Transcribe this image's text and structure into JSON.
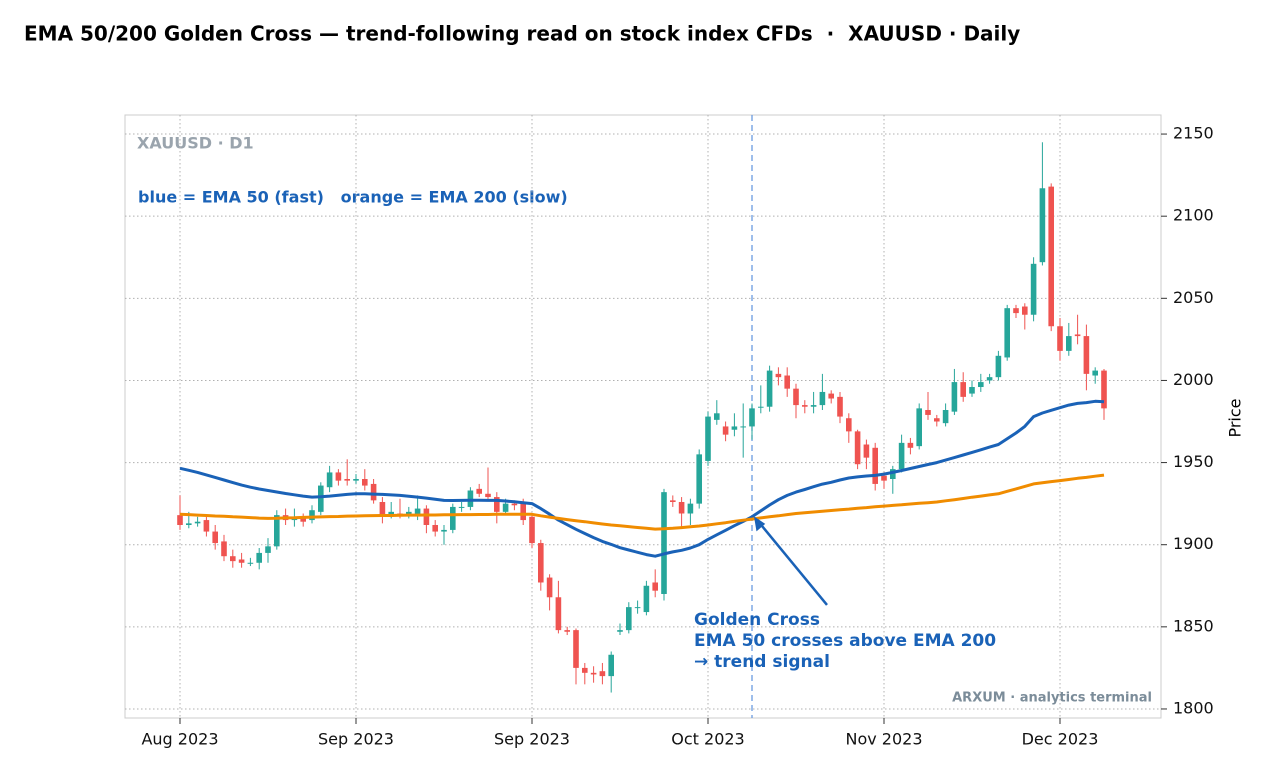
{
  "chart_data": {
    "type": "candlestick",
    "title": "EMA 50/200 Golden Cross — trend-following read on stock index CFDs  ·  XAUUSD · Daily",
    "panel_label": "XAUUSD · D1",
    "note": "blue = EMA 50 (fast)   orange = EMA 200 (slow)",
    "annotation": [
      "Golden Cross",
      "EMA 50 crosses above EMA 200",
      "→ trend signal"
    ],
    "watermark": "ARXUM · analytics terminal",
    "ylabel": "Price",
    "categories": [
      "Aug 2023",
      null,
      null,
      null,
      null,
      null,
      null,
      null,
      null,
      null,
      null,
      null,
      null,
      null,
      null,
      null,
      null,
      null,
      null,
      null,
      "Sep 2023",
      null,
      null,
      null,
      null,
      null,
      null,
      null,
      null,
      null,
      null,
      null,
      null,
      null,
      null,
      null,
      null,
      null,
      null,
      null,
      "Sep 2023",
      null,
      null,
      null,
      null,
      null,
      null,
      null,
      null,
      null,
      null,
      null,
      null,
      null,
      null,
      null,
      null,
      null,
      null,
      null,
      "Oct 2023",
      null,
      null,
      null,
      null,
      null,
      null,
      null,
      null,
      null,
      null,
      null,
      null,
      null,
      null,
      null,
      null,
      null,
      null,
      null,
      "Nov 2023",
      null,
      null,
      null,
      null,
      null,
      null,
      null,
      null,
      null,
      null,
      null,
      null,
      null,
      null,
      null,
      null,
      null,
      null,
      null,
      "Dec 2023",
      null,
      null,
      null,
      null,
      null
    ],
    "open": [
      1918,
      1912,
      1913,
      1915,
      1908,
      1902,
      1893,
      1891,
      1889,
      1889,
      1895,
      1899,
      1918,
      1915,
      1916,
      1915,
      1920,
      1935,
      1944,
      1940,
      1939,
      1940,
      1937,
      1926,
      1918,
      1919,
      1918,
      1918,
      1922,
      1912,
      1908,
      1909,
      1923,
      1923,
      1934,
      1931,
      1929,
      1920,
      1925,
      1925,
      1917,
      1901,
      1880,
      1868,
      1848,
      1848,
      1825,
      1822,
      1823,
      1820,
      1847,
      1848,
      1862,
      1859,
      1877,
      1870,
      1927,
      1926,
      1919,
      1925,
      1951,
      1976,
      1972,
      1970,
      1972,
      1972,
      1984,
      1984,
      2004,
      2003,
      1995,
      1985,
      1984,
      1985,
      1992,
      1990,
      1977,
      1969,
      1961,
      1959,
      1942,
      1940,
      1946,
      1962,
      1960,
      1982,
      1977,
      1974,
      1981,
      1999,
      1992,
      1996,
      2000,
      2002,
      2014,
      2044,
      2045,
      2040,
      2072,
      2118,
      2033,
      2018,
      2028,
      2027,
      2003,
      2006
    ],
    "high": [
      1930,
      1920,
      1917,
      1918,
      1912,
      1906,
      1897,
      1895,
      1892,
      1898,
      1904,
      1921,
      1922,
      1922,
      1919,
      1924,
      1938,
      1948,
      1946,
      1952,
      1943,
      1946,
      1940,
      1929,
      1926,
      1928,
      1923,
      1930,
      1924,
      1915,
      1912,
      1925,
      1926,
      1935,
      1937,
      1947,
      1932,
      1928,
      1927,
      1928,
      1919,
      1903,
      1882,
      1878,
      1850,
      1849,
      1828,
      1826,
      1828,
      1835,
      1852,
      1865,
      1866,
      1878,
      1885,
      1934,
      1930,
      1929,
      1928,
      1958,
      1981,
      1988,
      1975,
      1980,
      1986,
      1986,
      1997,
      2009,
      2008,
      2008,
      1998,
      1988,
      1993,
      2004,
      1994,
      1993,
      1980,
      1970,
      1964,
      1962,
      1944,
      1948,
      1967,
      1965,
      1986,
      1993,
      1979,
      1986,
      2007,
      2005,
      2000,
      2004,
      2004,
      2018,
      2046,
      2046,
      2047,
      2075,
      2145,
      2120,
      2038,
      2035,
      2040,
      2034,
      2008,
      2007
    ],
    "low": [
      1909,
      1910,
      1911,
      1905,
      1897,
      1890,
      1886,
      1886,
      1887,
      1885,
      1889,
      1897,
      1912,
      1911,
      1911,
      1913,
      1918,
      1932,
      1936,
      1936,
      1937,
      1933,
      1925,
      1913,
      1916,
      1916,
      1916,
      1915,
      1907,
      1905,
      1900,
      1907,
      1920,
      1921,
      1929,
      1927,
      1913,
      1918,
      1921,
      1912,
      1898,
      1872,
      1860,
      1846,
      1845,
      1815,
      1815,
      1816,
      1815,
      1810,
      1845,
      1846,
      1858,
      1857,
      1868,
      1866,
      1923,
      1910,
      1912,
      1922,
      1948,
      1973,
      1963,
      1966,
      1953,
      1964,
      1980,
      1981,
      1997,
      1990,
      1977,
      1980,
      1980,
      1982,
      1986,
      1974,
      1962,
      1946,
      1946,
      1933,
      1934,
      1931,
      1944,
      1955,
      1958,
      1976,
      1972,
      1972,
      1979,
      1987,
      1990,
      1993,
      1998,
      2000,
      2012,
      2038,
      2031,
      2036,
      2070,
      2030,
      2012,
      2015,
      2022,
      1994,
      1998,
      1976
    ],
    "close": [
      1912,
      1913,
      1914,
      1908,
      1901,
      1893,
      1890,
      1889,
      1889,
      1895,
      1899,
      1918,
      1915,
      1916,
      1914,
      1921,
      1936,
      1944,
      1939,
      1939,
      1940,
      1936,
      1927,
      1917,
      1920,
      1918,
      1920,
      1922,
      1912,
      1908,
      1909,
      1923,
      1923,
      1933,
      1931,
      1929,
      1920,
      1925,
      1924,
      1915,
      1901,
      1877,
      1868,
      1848,
      1847,
      1825,
      1822,
      1821,
      1820,
      1833,
      1848,
      1862,
      1862,
      1875,
      1872,
      1932,
      1926,
      1919,
      1925,
      1955,
      1978,
      1980,
      1967,
      1972,
      1972,
      1983,
      1984,
      2006,
      2002,
      1995,
      1985,
      1984,
      1985,
      1993,
      1989,
      1978,
      1969,
      1949,
      1953,
      1937,
      1939,
      1946,
      1962,
      1959,
      1983,
      1979,
      1975,
      1982,
      1999,
      1990,
      1996,
      1999,
      2002,
      2015,
      2044,
      2041,
      2040,
      2071,
      2117,
      2033,
      2018,
      2027,
      2027,
      2004,
      2006,
      1983
    ],
    "up_color": "#26a69a",
    "down_color": "#ef5350",
    "series": [
      {
        "color": "#1a62b7",
        "values": [
          1946.5,
          1945.3,
          1944.0,
          1942.5,
          1941.0,
          1939.4,
          1937.8,
          1936.3,
          1935.0,
          1933.9,
          1933.0,
          1932.1,
          1931.2,
          1930.4,
          1929.6,
          1929.0,
          1929.2,
          1929.6,
          1930.1,
          1930.6,
          1931.0,
          1931.0,
          1930.8,
          1930.6,
          1930.3,
          1930.0,
          1929.5,
          1929.0,
          1928.4,
          1927.7,
          1927.0,
          1926.9,
          1927.0,
          1927.1,
          1927.1,
          1927.0,
          1927.0,
          1926.6,
          1926.1,
          1925.6,
          1925.0,
          1922.0,
          1918.6,
          1915.0,
          1912.2,
          1909.4,
          1906.8,
          1904.3,
          1902.0,
          1900.2,
          1898.2,
          1896.8,
          1895.4,
          1894.0,
          1893.0,
          1894.4,
          1895.6,
          1896.6,
          1898.0,
          1900.0,
          1903.2,
          1906.0,
          1908.8,
          1911.6,
          1914.2,
          1917.0,
          1920.6,
          1924.2,
          1927.4,
          1930.0,
          1932.0,
          1933.6,
          1935.3,
          1936.9,
          1938.0,
          1939.4,
          1940.6,
          1941.3,
          1941.8,
          1942.2,
          1943.0,
          1944.0,
          1945.2,
          1946.4,
          1947.6,
          1948.8,
          1950.0,
          1951.5,
          1953.0,
          1954.6,
          1956.2,
          1957.8,
          1959.4,
          1961.0,
          1964.5,
          1968.0,
          1972.0,
          1978.0,
          1980.2,
          1981.8,
          1983.4,
          1985.0,
          1986.0,
          1986.5,
          1987.3,
          1987.0
        ]
      },
      {
        "color": "#f08c00",
        "values": [
          1918.5,
          1918.3,
          1918.0,
          1917.8,
          1917.5,
          1917.3,
          1917.0,
          1916.8,
          1916.5,
          1916.2,
          1916.0,
          1916.1,
          1916.3,
          1916.4,
          1916.6,
          1916.8,
          1916.9,
          1917.1,
          1917.2,
          1917.4,
          1917.5,
          1917.6,
          1917.7,
          1917.8,
          1917.8,
          1917.9,
          1918.0,
          1918.0,
          1918.1,
          1918.1,
          1918.2,
          1918.2,
          1918.3,
          1918.3,
          1918.4,
          1918.4,
          1918.5,
          1918.5,
          1918.5,
          1918.5,
          1918.5,
          1917.6,
          1916.8,
          1916.0,
          1915.3,
          1914.6,
          1914.0,
          1913.3,
          1912.6,
          1912.0,
          1911.5,
          1911.0,
          1910.5,
          1910.0,
          1909.5,
          1909.7,
          1910.0,
          1910.4,
          1910.9,
          1911.4,
          1912.0,
          1912.7,
          1913.4,
          1914.2,
          1914.9,
          1915.6,
          1916.3,
          1917.0,
          1917.6,
          1918.3,
          1919.0,
          1919.5,
          1919.9,
          1920.4,
          1920.8,
          1921.3,
          1921.7,
          1922.2,
          1922.6,
          1923.1,
          1923.5,
          1923.9,
          1924.3,
          1924.8,
          1925.2,
          1925.6,
          1926.0,
          1926.7,
          1927.4,
          1928.1,
          1928.9,
          1929.6,
          1930.3,
          1931.0,
          1932.5,
          1934.0,
          1935.5,
          1937.0,
          1937.7,
          1938.4,
          1939.0,
          1939.7,
          1940.4,
          1941.0,
          1941.7,
          1942.4
        ]
      }
    ],
    "ylim": [
      1794.5,
      2161.6
    ],
    "yticks": [
      1800,
      1850,
      1900,
      1950,
      2000,
      2050,
      2100,
      2150
    ],
    "grid": true
  }
}
